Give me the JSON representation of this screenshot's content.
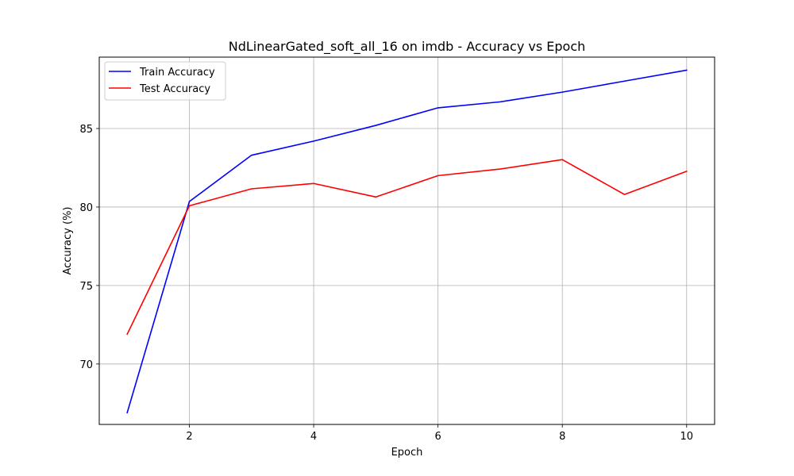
{
  "chart_data": {
    "type": "line",
    "title": "NdLinearGated_soft_all_16 on imdb - Accuracy vs Epoch",
    "xlabel": "Epoch",
    "ylabel": "Accuracy (%)",
    "xlim": [
      0.55,
      10.45
    ],
    "ylim": [
      66.15,
      89.55
    ],
    "xticks": [
      2,
      4,
      6,
      8,
      10
    ],
    "yticks": [
      70,
      75,
      80,
      85
    ],
    "grid": true,
    "legend_position": "upper left",
    "x": [
      1,
      2,
      3,
      4,
      5,
      6,
      7,
      8,
      9,
      10
    ],
    "series": [
      {
        "name": "Train Accuracy",
        "color": "#0000ff",
        "values": [
          66.9,
          80.35,
          83.3,
          84.2,
          85.2,
          86.32,
          86.7,
          87.32,
          88.02,
          88.72
        ]
      },
      {
        "name": "Test Accuracy",
        "color": "#ff0000",
        "values": [
          71.9,
          80.08,
          81.16,
          81.5,
          80.64,
          82.0,
          82.42,
          83.02,
          80.8,
          82.28
        ]
      }
    ]
  }
}
